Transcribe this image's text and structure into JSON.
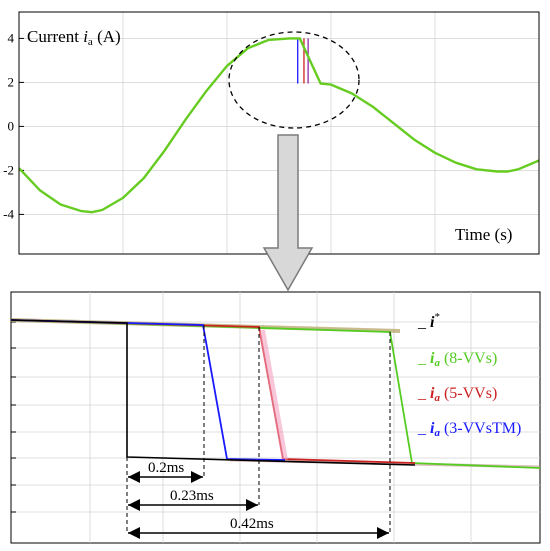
{
  "chart_data": [
    {
      "type": "line",
      "ylabel_main": "Current ",
      "ylabel_var": "i",
      "ylabel_sub": "a",
      "ylabel_unit": " (A)",
      "xlabel": "Time (s)",
      "xlim": [
        0.005,
        0.03
      ],
      "ylim": [
        -5.8,
        5.2
      ],
      "xticks": [
        "0.005",
        "0.01",
        "0.015",
        "0.02",
        "0.025",
        "0.03"
      ],
      "yticks": [
        "4",
        "2",
        "0",
        "-2",
        "-4"
      ],
      "grid": true,
      "series": [
        {
          "color": "#66cc22",
          "x": [
            0.005,
            0.006,
            0.007,
            0.008,
            0.0085,
            0.009,
            0.01,
            0.011,
            0.012,
            0.013,
            0.014,
            0.015,
            0.016,
            0.017,
            0.018,
            0.0185,
            0.0195,
            0.02,
            0.021,
            0.022,
            0.023,
            0.024,
            0.025,
            0.026,
            0.027,
            0.028,
            0.0285,
            0.029,
            0.03
          ],
          "y": [
            -1.9,
            -2.9,
            -3.55,
            -3.85,
            -3.9,
            -3.8,
            -3.25,
            -2.35,
            -1.1,
            0.3,
            1.6,
            2.75,
            3.55,
            3.93,
            4.0,
            4.0,
            1.95,
            1.9,
            1.5,
            0.9,
            0.15,
            -0.6,
            -1.2,
            -1.65,
            -1.95,
            -2.05,
            -2.05,
            -1.95,
            -1.55
          ]
        }
      ],
      "transition_lines": [
        {
          "x": 0.0184,
          "color": "#1a1aff"
        },
        {
          "x": 0.0187,
          "color": "#cc2222"
        },
        {
          "x": 0.0189,
          "color": "#8e2aa8"
        }
      ]
    },
    {
      "type": "line",
      "legend": [
        {
          "dash": "_ ",
          "var": "i",
          "sup": "*",
          "desc": "",
          "color": "#000000"
        },
        {
          "dash": "_ ",
          "var": "i",
          "sub": "a",
          "desc": " (8-VVs)",
          "color": "#55cc22"
        },
        {
          "dash": "_ ",
          "var": "i",
          "sub": "a",
          "desc": " (5-VVs)",
          "color": "#cc2222"
        },
        {
          "dash": "_ ",
          "var": "i",
          "sub": "a",
          "desc": " (3-VVsTM)",
          "color": "#1a1aff"
        }
      ],
      "annotations": [
        "0.2ms",
        "0.23ms",
        "0.42ms"
      ]
    }
  ]
}
